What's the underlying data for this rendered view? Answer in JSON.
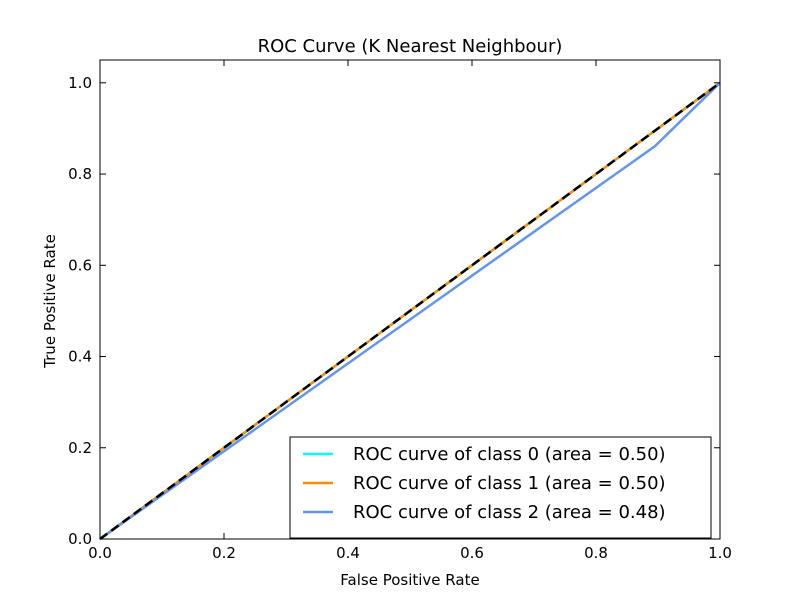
{
  "chart_data": {
    "type": "line",
    "title": "ROC Curve (K Nearest Neighbour)",
    "xlabel": "False Positive Rate",
    "ylabel": "True Positive Rate",
    "xlim": [
      0.0,
      1.0
    ],
    "ylim": [
      0.0,
      1.05
    ],
    "xticks": [
      "0.0",
      "0.2",
      "0.4",
      "0.6",
      "0.8",
      "1.0"
    ],
    "yticks": [
      "0.0",
      "0.2",
      "0.4",
      "0.6",
      "0.8",
      "1.0"
    ],
    "legend_position": "lower-right",
    "grid": false,
    "series": [
      {
        "name": "ROC curve of class 0 (area = 0.50)",
        "color": "#00ffff",
        "style": "solid",
        "x": [
          0.0,
          1.0
        ],
        "y": [
          0.0,
          1.0
        ]
      },
      {
        "name": "ROC curve of class 1 (area = 0.50)",
        "color": "#ff8c00",
        "style": "solid",
        "x": [
          0.0,
          1.0
        ],
        "y": [
          0.0,
          1.0
        ]
      },
      {
        "name": "ROC curve of class 2 (area = 0.48)",
        "color": "#6495ed",
        "style": "solid",
        "x": [
          0.0,
          0.895,
          1.0
        ],
        "y": [
          0.0,
          0.861,
          1.0
        ]
      },
      {
        "name": "",
        "color": "#000000",
        "style": "dashed",
        "x": [
          0.0,
          1.0
        ],
        "y": [
          0.0,
          1.0
        ]
      }
    ]
  }
}
